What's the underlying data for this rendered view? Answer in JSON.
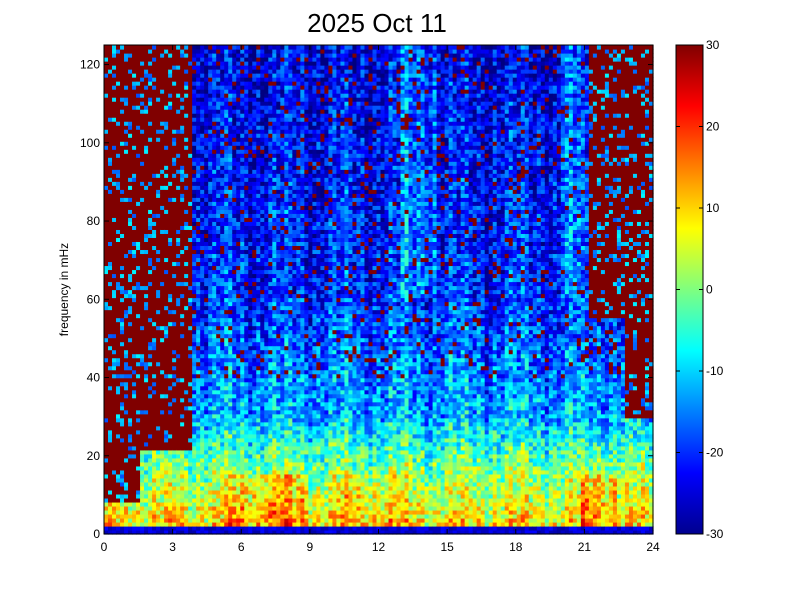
{
  "chart_data": [
    {
      "type": "heatmap",
      "title": "2025 Oct 11",
      "xlabel": "",
      "ylabel": "frequency in mHz",
      "xlim": [
        0,
        24
      ],
      "ylim": [
        0,
        125
      ],
      "x_ticks": [
        "0",
        "3",
        "6",
        "9",
        "12",
        "15",
        "18",
        "21",
        "24"
      ],
      "y_ticks": [
        "0",
        "20",
        "40",
        "60",
        "80",
        "100",
        "120"
      ],
      "grid": false,
      "colormap": "jet",
      "color_range": [
        -30,
        30
      ],
      "description_of_values": {
        "low_frequency_band_0_to_15_mHz": "high power (~5 to 25), strongest near 6-9 h and 21-22 h",
        "low_frequency_line_near_1_mHz": "very low (~-30)",
        "mid_band_15_to_60_mHz": "moderate (~-20 to -5)",
        "upper_band_60_to_125_mHz_hours_0_to_4": "saturated (~30)",
        "upper_band_60_to_125_mHz_hours_4_to_21": "low (~-25 to -10) with scattered saturated pixels",
        "upper_band_60_to_125_mHz_hours_21_to_24": "mostly saturated (~30)"
      }
    },
    {
      "type": "colorbar",
      "ticks": [
        "30",
        "20",
        "10",
        "0",
        "-10",
        "-20",
        "-30"
      ],
      "range": [
        -30,
        30
      ]
    }
  ]
}
